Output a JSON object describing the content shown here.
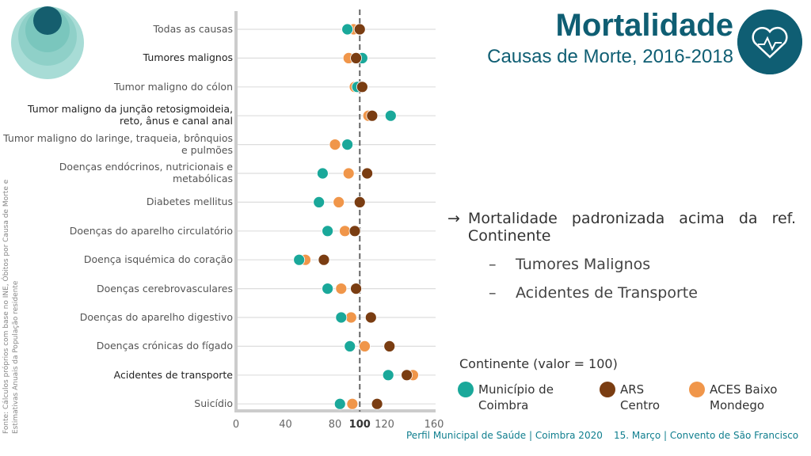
{
  "header": {
    "title": "Mortalidade",
    "subtitle": "Causas de Morte, 2016-2018"
  },
  "source": "Fonte: Cálculos próprios com base no INE, Óbitos por Causa de Morte e Estimativas Anuais da População residente",
  "notes": {
    "arrow": "→",
    "main": "Mortalidade padronizada acima da ref. Continente",
    "items": [
      "Tumores Malignos",
      "Acidentes de Transporte"
    ],
    "dash": "–"
  },
  "legend": {
    "title": "Continente (valor = 100)",
    "items": [
      "Município de Coimbra",
      "ARS Centro",
      "ACES Baixo Mondego"
    ]
  },
  "footer": {
    "left": "Perfil Municipal de Saúde | Coimbra 2020",
    "right": "15. Março | Convento de São Francisco"
  },
  "chart_data": {
    "type": "scatter",
    "xlim": [
      0,
      160
    ],
    "xticks": [
      "0",
      "40",
      "80",
      "100",
      "120",
      "160"
    ],
    "reference": 100,
    "colors": {
      "Município de Coimbra": "#1aa89a",
      "ARS Centro": "#7a3d12",
      "ACES Baixo Mondego": "#f0964a"
    },
    "categories": [
      {
        "label": "Todas as causas",
        "hl": false
      },
      {
        "label": "Tumores malignos",
        "hl": true
      },
      {
        "label": "Tumor maligno do cólon",
        "hl": false
      },
      {
        "label": "Tumor maligno da junção retosigmoideia, reto, ânus e canal anal",
        "hl": true
      },
      {
        "label": "Tumor maligno do laringe, traqueia, brônquios e pulmões",
        "hl": false
      },
      {
        "label": "Doenças endócrinos, nutricionais e metabólicas",
        "hl": false
      },
      {
        "label": "Diabetes mellitus",
        "hl": false
      },
      {
        "label": "Doenças do aparelho circulatório",
        "hl": false
      },
      {
        "label": "Doença isquémica do coração",
        "hl": false
      },
      {
        "label": "Doenças cerebrovasculares",
        "hl": false
      },
      {
        "label": "Doenças do aparelho digestivo",
        "hl": false
      },
      {
        "label": "Doenças crónicas do fígado",
        "hl": false
      },
      {
        "label": "Acidentes de transporte",
        "hl": true
      },
      {
        "label": "Suicídio",
        "hl": false
      }
    ],
    "series": [
      {
        "name": "ACES Baixo Mondego",
        "values": [
          95,
          91,
          96,
          107,
          80,
          91,
          83,
          88,
          56,
          85,
          93,
          104,
          143,
          94
        ]
      },
      {
        "name": "Município de Coimbra",
        "values": [
          90,
          102,
          98,
          125,
          90,
          70,
          67,
          74,
          51,
          74,
          85,
          92,
          123,
          84
        ]
      },
      {
        "name": "ARS Centro",
        "values": [
          100,
          97,
          102,
          110,
          null,
          106,
          100,
          96,
          71,
          97,
          109,
          124,
          138,
          114
        ]
      }
    ]
  }
}
